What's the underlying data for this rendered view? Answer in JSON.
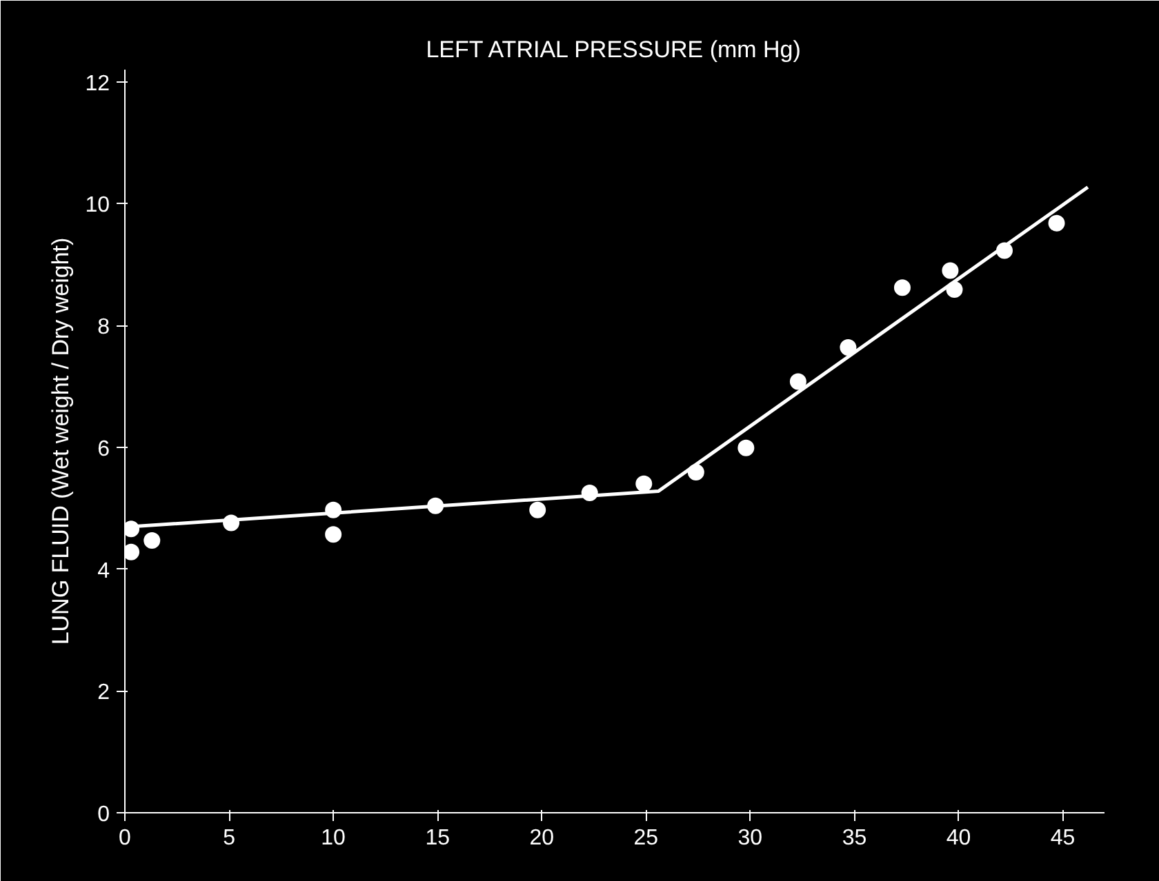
{
  "chart_data": {
    "type": "scatter",
    "xlabel": "LEFT ATRIAL PRESSURE (mm Hg)",
    "ylabel": "LUNG FLUID (Wet weight / Dry weight)",
    "series": [
      {
        "color": "#ffffff",
        "marker": "circle",
        "x": [
          0.3,
          0.3,
          1.3,
          5.1,
          10,
          10,
          14.9,
          19.8,
          22.3,
          24.9,
          27.4,
          29.8,
          32.3,
          34.7,
          37.3,
          39.6,
          39.8,
          42.2,
          44.7
        ],
        "values": [
          4.66,
          4.28,
          4.47,
          4.76,
          4.97,
          4.57,
          5.04,
          4.97,
          5.25,
          5.4,
          5.59,
          5.99,
          7.08,
          7.64,
          8.62,
          8.9,
          8.59,
          9.23,
          9.68
        ]
      },
      {
        "type": "line",
        "color": "#ffffff",
        "line_style": "solid",
        "x": [
          0,
          25.6,
          46.2
        ],
        "values": [
          4.69,
          5.28,
          10.27
        ]
      }
    ],
    "xlim": [
      0,
      47
    ],
    "ylim": [
      0,
      12.2
    ],
    "xticks": [
      0,
      5,
      10,
      15,
      20,
      25,
      30,
      35,
      40,
      45
    ],
    "yticks": [
      0,
      2,
      4,
      6,
      8,
      10,
      12
    ],
    "grid": false
  }
}
